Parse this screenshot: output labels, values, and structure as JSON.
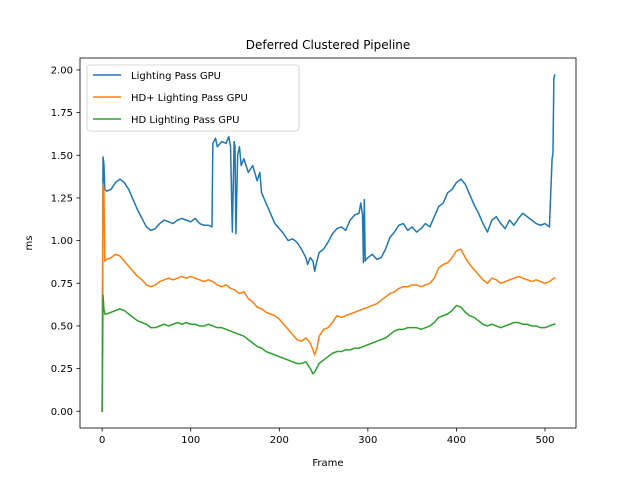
{
  "chart_data": {
    "type": "line",
    "title": "Deferred Clustered Pipeline",
    "xlabel": "Frame",
    "ylabel": "ms",
    "xlim": [
      -25,
      535
    ],
    "ylim": [
      -0.098,
      2.07
    ],
    "xticks": [
      0,
      100,
      200,
      300,
      400,
      500
    ],
    "yticks": [
      0.0,
      0.25,
      0.5,
      0.75,
      1.0,
      1.25,
      1.5,
      1.75,
      2.0
    ],
    "ytick_labels": [
      "0.00",
      "0.25",
      "0.50",
      "0.75",
      "1.00",
      "1.25",
      "1.50",
      "1.75",
      "2.00"
    ],
    "grid": false,
    "legend_position": "top-left",
    "series": [
      {
        "name": "Lighting Pass GPU",
        "color": "#1f77b4",
        "x": [
          0,
          1,
          2,
          3,
          5,
          10,
          15,
          20,
          25,
          30,
          35,
          40,
          45,
          50,
          55,
          60,
          65,
          70,
          75,
          80,
          85,
          90,
          95,
          100,
          105,
          110,
          115,
          120,
          124,
          125,
          128,
          130,
          135,
          140,
          143,
          145,
          147,
          149,
          150,
          151,
          153,
          155,
          157,
          160,
          165,
          170,
          175,
          178,
          180,
          185,
          190,
          195,
          200,
          205,
          210,
          215,
          220,
          225,
          230,
          232,
          235,
          238,
          240,
          242,
          245,
          250,
          255,
          260,
          265,
          270,
          275,
          280,
          285,
          290,
          292,
          294,
          295,
          296,
          297,
          298,
          300,
          305,
          310,
          315,
          320,
          325,
          330,
          335,
          340,
          345,
          350,
          355,
          360,
          365,
          370,
          375,
          380,
          385,
          390,
          395,
          400,
          405,
          410,
          415,
          420,
          425,
          430,
          435,
          440,
          445,
          450,
          455,
          460,
          465,
          470,
          475,
          480,
          485,
          490,
          495,
          500,
          505,
          508,
          509,
          510,
          511
        ],
        "y": [
          0.0,
          1.49,
          1.45,
          1.3,
          1.29,
          1.3,
          1.34,
          1.36,
          1.34,
          1.3,
          1.24,
          1.18,
          1.13,
          1.08,
          1.06,
          1.07,
          1.1,
          1.12,
          1.11,
          1.1,
          1.12,
          1.13,
          1.12,
          1.11,
          1.13,
          1.1,
          1.09,
          1.09,
          1.08,
          1.57,
          1.6,
          1.55,
          1.58,
          1.57,
          1.61,
          1.55,
          1.05,
          1.58,
          1.55,
          1.04,
          1.5,
          1.55,
          1.44,
          1.48,
          1.4,
          1.44,
          1.35,
          1.4,
          1.28,
          1.22,
          1.16,
          1.1,
          1.07,
          1.04,
          1.0,
          1.01,
          0.99,
          0.95,
          0.9,
          0.86,
          0.9,
          0.88,
          0.82,
          0.87,
          0.93,
          0.95,
          0.99,
          1.04,
          1.07,
          1.08,
          1.06,
          1.12,
          1.15,
          1.16,
          1.22,
          1.15,
          0.87,
          1.24,
          0.88,
          0.89,
          0.9,
          0.92,
          0.89,
          0.9,
          0.95,
          1.02,
          1.05,
          1.09,
          1.1,
          1.06,
          1.08,
          1.05,
          1.07,
          1.1,
          1.08,
          1.14,
          1.2,
          1.22,
          1.28,
          1.3,
          1.34,
          1.36,
          1.33,
          1.27,
          1.21,
          1.16,
          1.1,
          1.05,
          1.12,
          1.14,
          1.1,
          1.07,
          1.12,
          1.09,
          1.13,
          1.16,
          1.14,
          1.12,
          1.1,
          1.09,
          1.1,
          1.08,
          1.48,
          1.51,
          1.95,
          1.97
        ]
      },
      {
        "name": "HD+ Lighting Pass GPU",
        "color": "#ff7f0e",
        "x": [
          0,
          1,
          2,
          3,
          5,
          10,
          15,
          20,
          25,
          30,
          35,
          40,
          45,
          50,
          55,
          60,
          65,
          70,
          75,
          80,
          85,
          90,
          95,
          100,
          105,
          110,
          115,
          120,
          125,
          130,
          135,
          140,
          145,
          150,
          155,
          160,
          165,
          170,
          175,
          180,
          185,
          190,
          195,
          200,
          205,
          210,
          215,
          220,
          225,
          230,
          235,
          238,
          240,
          243,
          245,
          250,
          255,
          260,
          265,
          270,
          275,
          280,
          285,
          290,
          295,
          300,
          305,
          310,
          315,
          320,
          325,
          330,
          335,
          340,
          345,
          350,
          355,
          360,
          365,
          370,
          375,
          380,
          385,
          390,
          395,
          400,
          405,
          410,
          415,
          420,
          425,
          430,
          435,
          440,
          445,
          450,
          455,
          460,
          465,
          470,
          475,
          480,
          485,
          490,
          495,
          500,
          505,
          510,
          511
        ],
        "y": [
          0.0,
          1.33,
          1.3,
          0.88,
          0.89,
          0.9,
          0.92,
          0.91,
          0.88,
          0.85,
          0.82,
          0.79,
          0.77,
          0.74,
          0.73,
          0.74,
          0.76,
          0.77,
          0.78,
          0.77,
          0.78,
          0.79,
          0.78,
          0.79,
          0.78,
          0.77,
          0.76,
          0.77,
          0.76,
          0.74,
          0.73,
          0.74,
          0.72,
          0.71,
          0.69,
          0.7,
          0.66,
          0.64,
          0.61,
          0.6,
          0.58,
          0.57,
          0.56,
          0.54,
          0.51,
          0.48,
          0.45,
          0.42,
          0.41,
          0.43,
          0.4,
          0.36,
          0.33,
          0.38,
          0.44,
          0.48,
          0.49,
          0.52,
          0.56,
          0.55,
          0.56,
          0.57,
          0.58,
          0.59,
          0.6,
          0.61,
          0.62,
          0.63,
          0.65,
          0.67,
          0.69,
          0.7,
          0.72,
          0.73,
          0.73,
          0.74,
          0.74,
          0.73,
          0.74,
          0.75,
          0.78,
          0.84,
          0.86,
          0.87,
          0.9,
          0.94,
          0.95,
          0.9,
          0.86,
          0.83,
          0.8,
          0.77,
          0.75,
          0.78,
          0.77,
          0.75,
          0.76,
          0.77,
          0.78,
          0.79,
          0.78,
          0.77,
          0.76,
          0.77,
          0.76,
          0.75,
          0.76,
          0.78,
          0.78
        ]
      },
      {
        "name": "HD Lighting Pass GPU",
        "color": "#2ca02c",
        "x": [
          0,
          1,
          2,
          3,
          5,
          10,
          15,
          20,
          25,
          30,
          35,
          40,
          45,
          50,
          55,
          60,
          65,
          70,
          75,
          80,
          85,
          90,
          95,
          100,
          105,
          110,
          115,
          120,
          125,
          130,
          135,
          140,
          145,
          150,
          155,
          160,
          165,
          170,
          175,
          180,
          185,
          190,
          195,
          200,
          205,
          210,
          215,
          220,
          225,
          230,
          235,
          238,
          240,
          243,
          245,
          250,
          255,
          260,
          265,
          270,
          275,
          280,
          285,
          290,
          295,
          300,
          305,
          310,
          315,
          320,
          325,
          330,
          335,
          340,
          345,
          350,
          355,
          360,
          365,
          370,
          375,
          380,
          385,
          390,
          395,
          400,
          405,
          410,
          415,
          420,
          425,
          430,
          435,
          440,
          445,
          450,
          455,
          460,
          465,
          470,
          475,
          480,
          485,
          490,
          495,
          500,
          505,
          510,
          511
        ],
        "y": [
          0.0,
          0.68,
          0.6,
          0.57,
          0.57,
          0.58,
          0.59,
          0.6,
          0.59,
          0.57,
          0.55,
          0.53,
          0.52,
          0.51,
          0.49,
          0.49,
          0.5,
          0.51,
          0.5,
          0.51,
          0.52,
          0.51,
          0.52,
          0.51,
          0.51,
          0.5,
          0.5,
          0.51,
          0.5,
          0.49,
          0.49,
          0.48,
          0.47,
          0.46,
          0.45,
          0.44,
          0.42,
          0.4,
          0.38,
          0.37,
          0.35,
          0.34,
          0.33,
          0.32,
          0.31,
          0.3,
          0.29,
          0.28,
          0.28,
          0.29,
          0.25,
          0.22,
          0.23,
          0.26,
          0.28,
          0.3,
          0.32,
          0.34,
          0.35,
          0.35,
          0.36,
          0.36,
          0.37,
          0.37,
          0.38,
          0.39,
          0.4,
          0.41,
          0.42,
          0.43,
          0.45,
          0.47,
          0.48,
          0.48,
          0.49,
          0.49,
          0.49,
          0.48,
          0.49,
          0.5,
          0.52,
          0.55,
          0.56,
          0.57,
          0.59,
          0.62,
          0.61,
          0.58,
          0.56,
          0.55,
          0.53,
          0.51,
          0.5,
          0.51,
          0.5,
          0.49,
          0.5,
          0.51,
          0.52,
          0.52,
          0.51,
          0.51,
          0.5,
          0.5,
          0.49,
          0.49,
          0.5,
          0.51,
          0.51
        ]
      }
    ]
  }
}
